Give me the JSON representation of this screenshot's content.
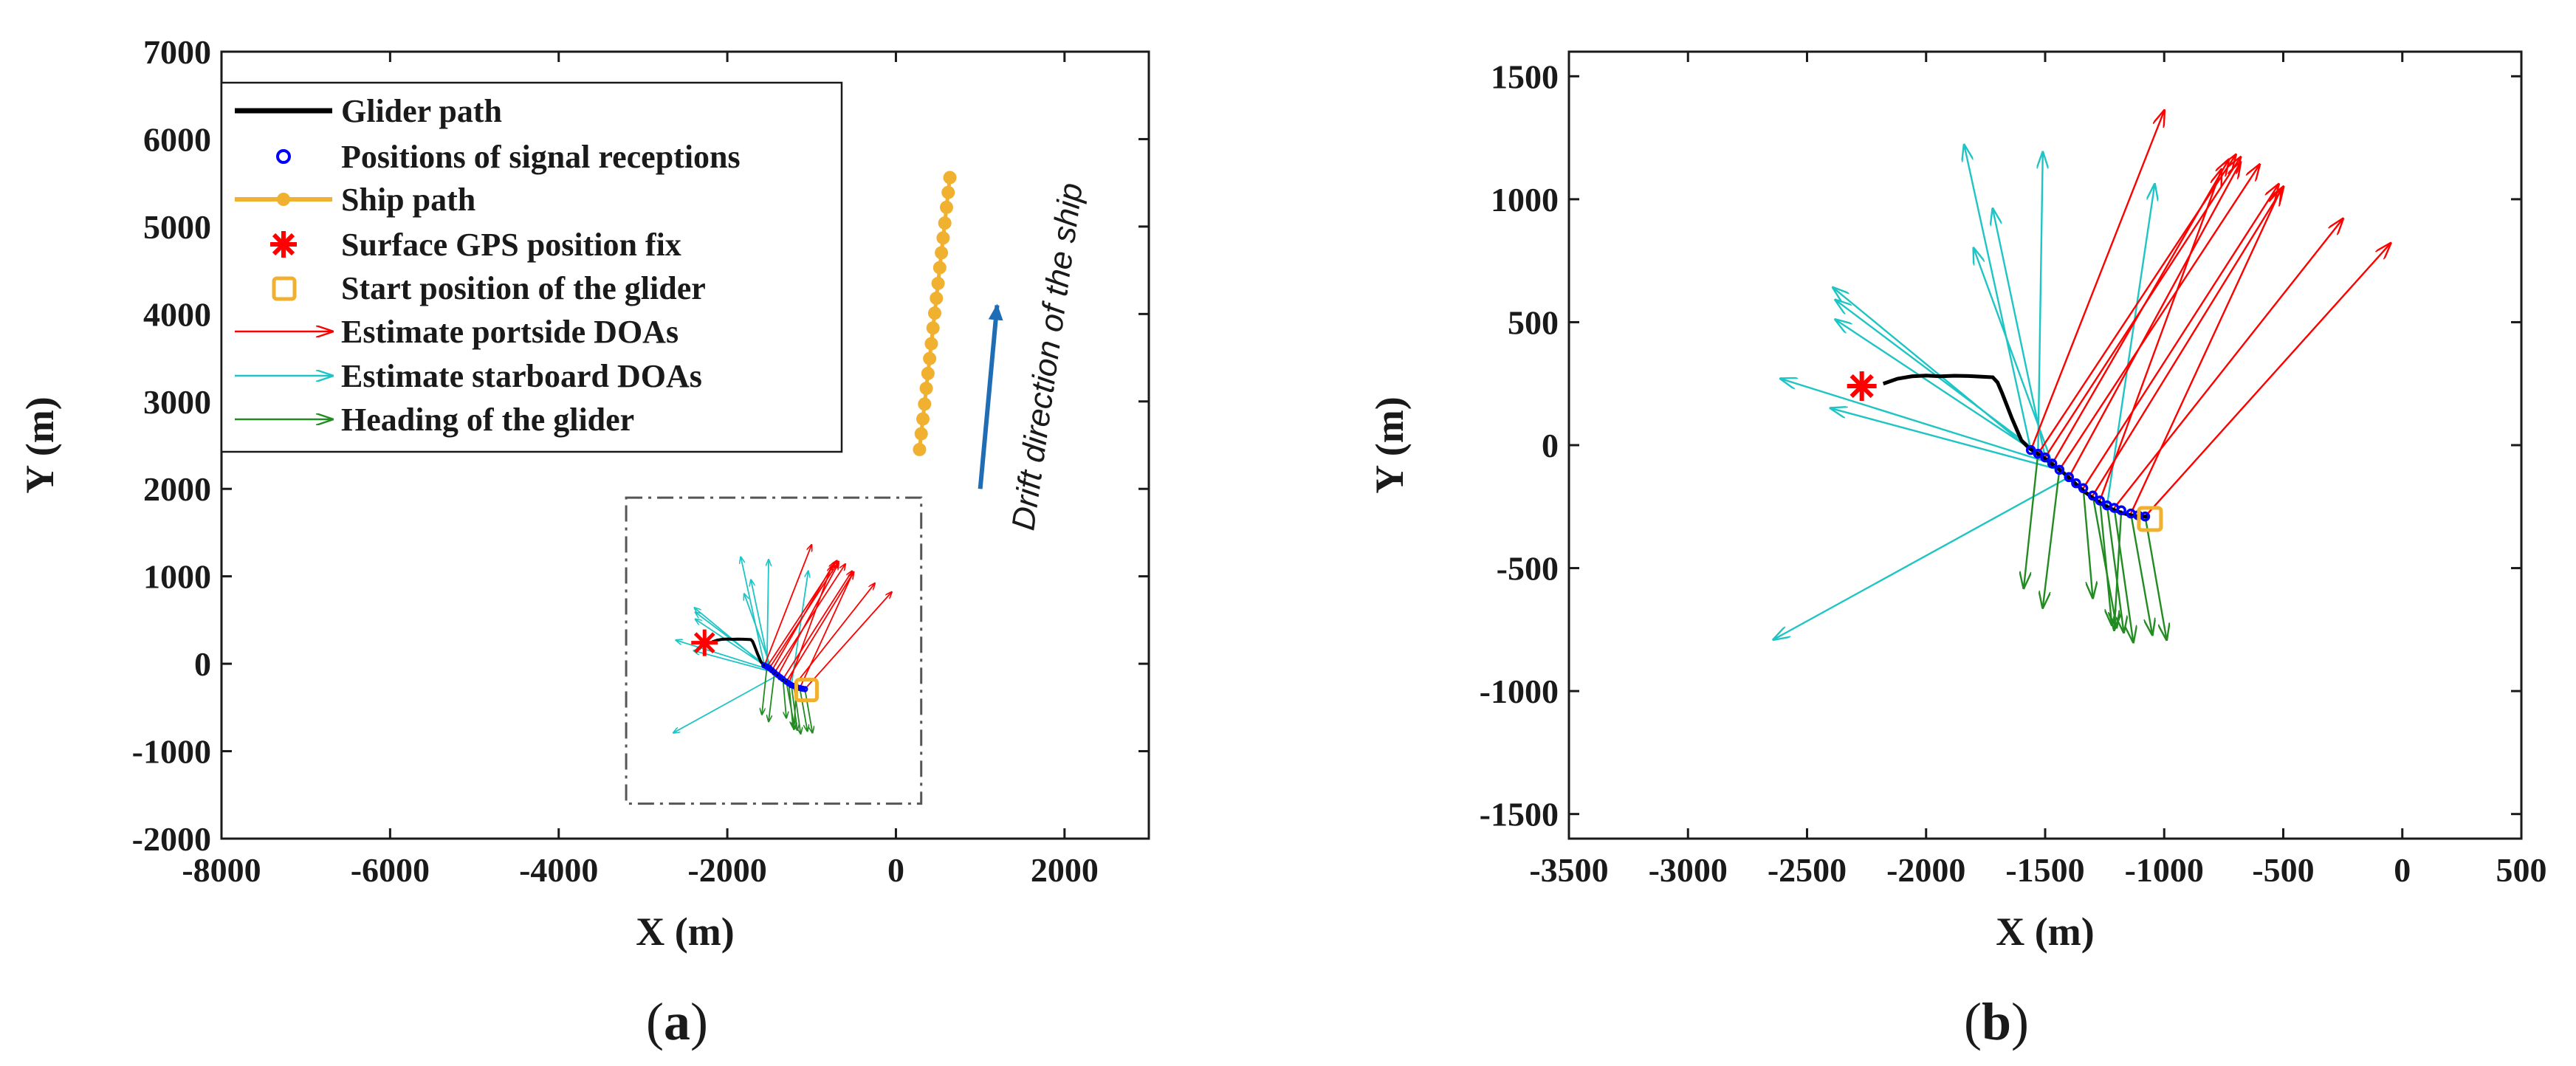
{
  "chart_data": [
    {
      "type": "line",
      "panel_label_open": "(",
      "panel_label_letter": "a",
      "panel_label_close": ")",
      "xlabel": "X (m)",
      "ylabel": "Y (m)",
      "xlim": [
        -8000,
        3000
      ],
      "ylim": [
        -2000,
        7000
      ],
      "xticks": [
        -8000,
        -6000,
        -4000,
        -2000,
        0,
        2000
      ],
      "yticks": [
        -2000,
        -1000,
        0,
        1000,
        2000,
        3000,
        4000,
        5000,
        6000,
        7000
      ],
      "legend": {
        "position": "top-left",
        "entries": [
          {
            "key": "glider",
            "label": "Glider path",
            "color": "#000000",
            "marker": "line"
          },
          {
            "key": "rx",
            "label": "Positions of signal receptions",
            "color": "#0000ff",
            "marker": "circle"
          },
          {
            "key": "ship",
            "label": "Ship path",
            "color": "#f0b030",
            "marker": "line-dot"
          },
          {
            "key": "gps",
            "label": "Surface GPS position fix",
            "color": "#ff0000",
            "marker": "asterisk"
          },
          {
            "key": "start",
            "label": "Start position of the glider",
            "color": "#f0b030",
            "marker": "square"
          },
          {
            "key": "port",
            "label": "Estimate portside DOAs",
            "color": "#ff0000",
            "marker": "arrow"
          },
          {
            "key": "star",
            "label": "Estimate starboard DOAs",
            "color": "#1fc4c4",
            "marker": "arrow"
          },
          {
            "key": "head",
            "label": "Heading of the glider",
            "color": "#228b22",
            "marker": "arrow"
          }
        ]
      },
      "drift_annotation": {
        "text": "Drift direction of the ship",
        "arrow_from": [
          1000,
          2000
        ],
        "arrow_to": [
          1200,
          4100
        ],
        "color": "#1f6db5"
      },
      "zoom_box": {
        "x": [
          -3200,
          300
        ],
        "y": [
          -1600,
          1900
        ]
      },
      "ship_path": {
        "color": "#f0b030",
        "x": [
          280,
          300,
          320,
          340,
          360,
          380,
          400,
          420,
          440,
          460,
          480,
          500,
          520,
          540,
          560,
          580,
          600,
          620,
          640
        ],
        "y": [
          2450,
          2630,
          2800,
          2970,
          3150,
          3320,
          3490,
          3660,
          3840,
          4010,
          4180,
          4350,
          4530,
          4700,
          4870,
          5040,
          5220,
          5390,
          5560
        ]
      }
    },
    {
      "type": "line",
      "panel_label_open": "(",
      "panel_label_letter": "b",
      "panel_label_close": ")",
      "xlabel": "X (m)",
      "ylabel": "Y (m)",
      "xlim": [
        -3500,
        500
      ],
      "ylim": [
        -1600,
        1600
      ],
      "xticks": [
        -3500,
        -3000,
        -2500,
        -2000,
        -1500,
        -1000,
        -500,
        0,
        500
      ],
      "yticks": [
        -1500,
        -1000,
        -500,
        0,
        500,
        1000,
        1500
      ],
      "glider_path": {
        "color": "#000000",
        "x": [
          -2180,
          -2120,
          -2060,
          -2000,
          -1940,
          -1880,
          -1820,
          -1760,
          -1720,
          -1700,
          -1680,
          -1660,
          -1640,
          -1620,
          -1600,
          -1570,
          -1540,
          -1500,
          -1460,
          -1420,
          -1380,
          -1340,
          -1300,
          -1260,
          -1220,
          -1180,
          -1140,
          -1100,
          -1070
        ],
        "y": [
          250,
          270,
          280,
          283,
          280,
          282,
          281,
          278,
          276,
          255,
          210,
          160,
          110,
          65,
          20,
          -10,
          -30,
          -55,
          -85,
          -115,
          -150,
          -185,
          -215,
          -240,
          -260,
          -275,
          -285,
          -290,
          -290
        ]
      },
      "reception_positions": {
        "color": "#0000ff",
        "x": [
          -1560,
          -1530,
          -1500,
          -1470,
          -1440,
          -1400,
          -1370,
          -1340,
          -1300,
          -1270,
          -1240,
          -1210,
          -1180,
          -1140,
          -1110,
          -1080
        ],
        "y": [
          -20,
          -35,
          -50,
          -75,
          -100,
          -130,
          -155,
          -175,
          -205,
          -225,
          -245,
          -255,
          -265,
          -278,
          -285,
          -290
        ]
      },
      "gps_fix": {
        "x": -2270,
        "y": 240,
        "color": "#ff0000"
      },
      "start_position": {
        "x": -1060,
        "y": -300,
        "color": "#f0b030"
      },
      "portside_doas": {
        "color": "#ff0000",
        "arrows": [
          {
            "from": [
              -1560,
              -20
            ],
            "to": [
              -1000,
              1360
            ]
          },
          {
            "from": [
              -1530,
              -35
            ],
            "to": [
              -700,
              1180
            ]
          },
          {
            "from": [
              -1500,
              -50
            ],
            "to": [
              -680,
              1170
            ]
          },
          {
            "from": [
              -1470,
              -75
            ],
            "to": [
              -730,
              1160
            ]
          },
          {
            "from": [
              -1440,
              -100
            ],
            "to": [
              -600,
              1140
            ]
          },
          {
            "from": [
              -1400,
              -130
            ],
            "to": [
              -680,
              1150
            ]
          },
          {
            "from": [
              -1340,
              -175
            ],
            "to": [
              -520,
              1060
            ]
          },
          {
            "from": [
              -1300,
              -205
            ],
            "to": [
              -500,
              1050
            ]
          },
          {
            "from": [
              -1270,
              -225
            ],
            "to": [
              -760,
              1120
            ]
          },
          {
            "from": [
              -1210,
              -255
            ],
            "to": [
              -250,
              920
            ]
          },
          {
            "from": [
              -1140,
              -278
            ],
            "to": [
              -510,
              1040
            ]
          },
          {
            "from": [
              -1080,
              -290
            ],
            "to": [
              -50,
              820
            ]
          }
        ]
      },
      "starboard_doas": {
        "color": "#1fc4c4",
        "arrows": [
          {
            "from": [
              -1560,
              -20
            ],
            "to": [
              -1840,
              1220
            ]
          },
          {
            "from": [
              -1530,
              -35
            ],
            "to": [
              -1510,
              1190
            ]
          },
          {
            "from": [
              -1500,
              -50
            ],
            "to": [
              -1720,
              960
            ]
          },
          {
            "from": [
              -1470,
              -75
            ],
            "to": [
              -1800,
              800
            ]
          },
          {
            "from": [
              -1560,
              -20
            ],
            "to": [
              -2390,
              640
            ]
          },
          {
            "from": [
              -1530,
              -35
            ],
            "to": [
              -2380,
              510
            ]
          },
          {
            "from": [
              -1500,
              -50
            ],
            "to": [
              -2380,
              590
            ]
          },
          {
            "from": [
              -1470,
              -75
            ],
            "to": [
              -2610,
              270
            ]
          },
          {
            "from": [
              -1440,
              -100
            ],
            "to": [
              -2400,
              150
            ]
          },
          {
            "from": [
              -1400,
              -130
            ],
            "to": [
              -2640,
              -790
            ]
          },
          {
            "from": [
              -1240,
              -245
            ],
            "to": [
              -1040,
              1060
            ]
          }
        ]
      },
      "glider_heading": {
        "color": "#228b22",
        "arrows": [
          {
            "from": [
              -1530,
              -35
            ],
            "to": [
              -1590,
              -580
            ]
          },
          {
            "from": [
              -1440,
              -100
            ],
            "to": [
              -1510,
              -660
            ]
          },
          {
            "from": [
              -1340,
              -175
            ],
            "to": [
              -1300,
              -620
            ]
          },
          {
            "from": [
              -1300,
              -205
            ],
            "to": [
              -1200,
              -740
            ]
          },
          {
            "from": [
              -1270,
              -225
            ],
            "to": [
              -1220,
              -730
            ]
          },
          {
            "from": [
              -1240,
              -245
            ],
            "to": [
              -1170,
              -760
            ]
          },
          {
            "from": [
              -1210,
              -255
            ],
            "to": [
              -1130,
              -800
            ]
          },
          {
            "from": [
              -1180,
              -265
            ],
            "to": [
              -1210,
              -750
            ]
          },
          {
            "from": [
              -1140,
              -278
            ],
            "to": [
              -1050,
              -770
            ]
          },
          {
            "from": [
              -1080,
              -290
            ],
            "to": [
              -990,
              -790
            ]
          }
        ]
      }
    }
  ]
}
